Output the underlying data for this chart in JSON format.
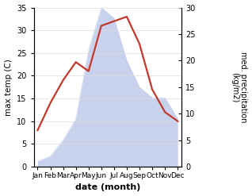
{
  "months": [
    "Jan",
    "Feb",
    "Mar",
    "Apr",
    "May",
    "Jun",
    "Jul",
    "Aug",
    "Sep",
    "Oct",
    "Nov",
    "Dec"
  ],
  "temperature": [
    8,
    14,
    19,
    23,
    21,
    31,
    32,
    33,
    27,
    17,
    12,
    10
  ],
  "precipitation": [
    1,
    2,
    5,
    9,
    22,
    30,
    28,
    20,
    15,
    13,
    13,
    9
  ],
  "temp_color": "#c0392b",
  "precip_color": "#b8c4e8",
  "ylim_temp": [
    0,
    35
  ],
  "ylim_precip": [
    0,
    30
  ],
  "yticks_temp": [
    0,
    5,
    10,
    15,
    20,
    25,
    30,
    35
  ],
  "yticks_precip": [
    0,
    5,
    10,
    15,
    20,
    25,
    30
  ],
  "xlabel": "date (month)",
  "ylabel_left": "max temp (C)",
  "ylabel_right": "med. precipitation\n(kg/m2)",
  "temp_linewidth": 1.6,
  "bg_color": "#ffffff"
}
